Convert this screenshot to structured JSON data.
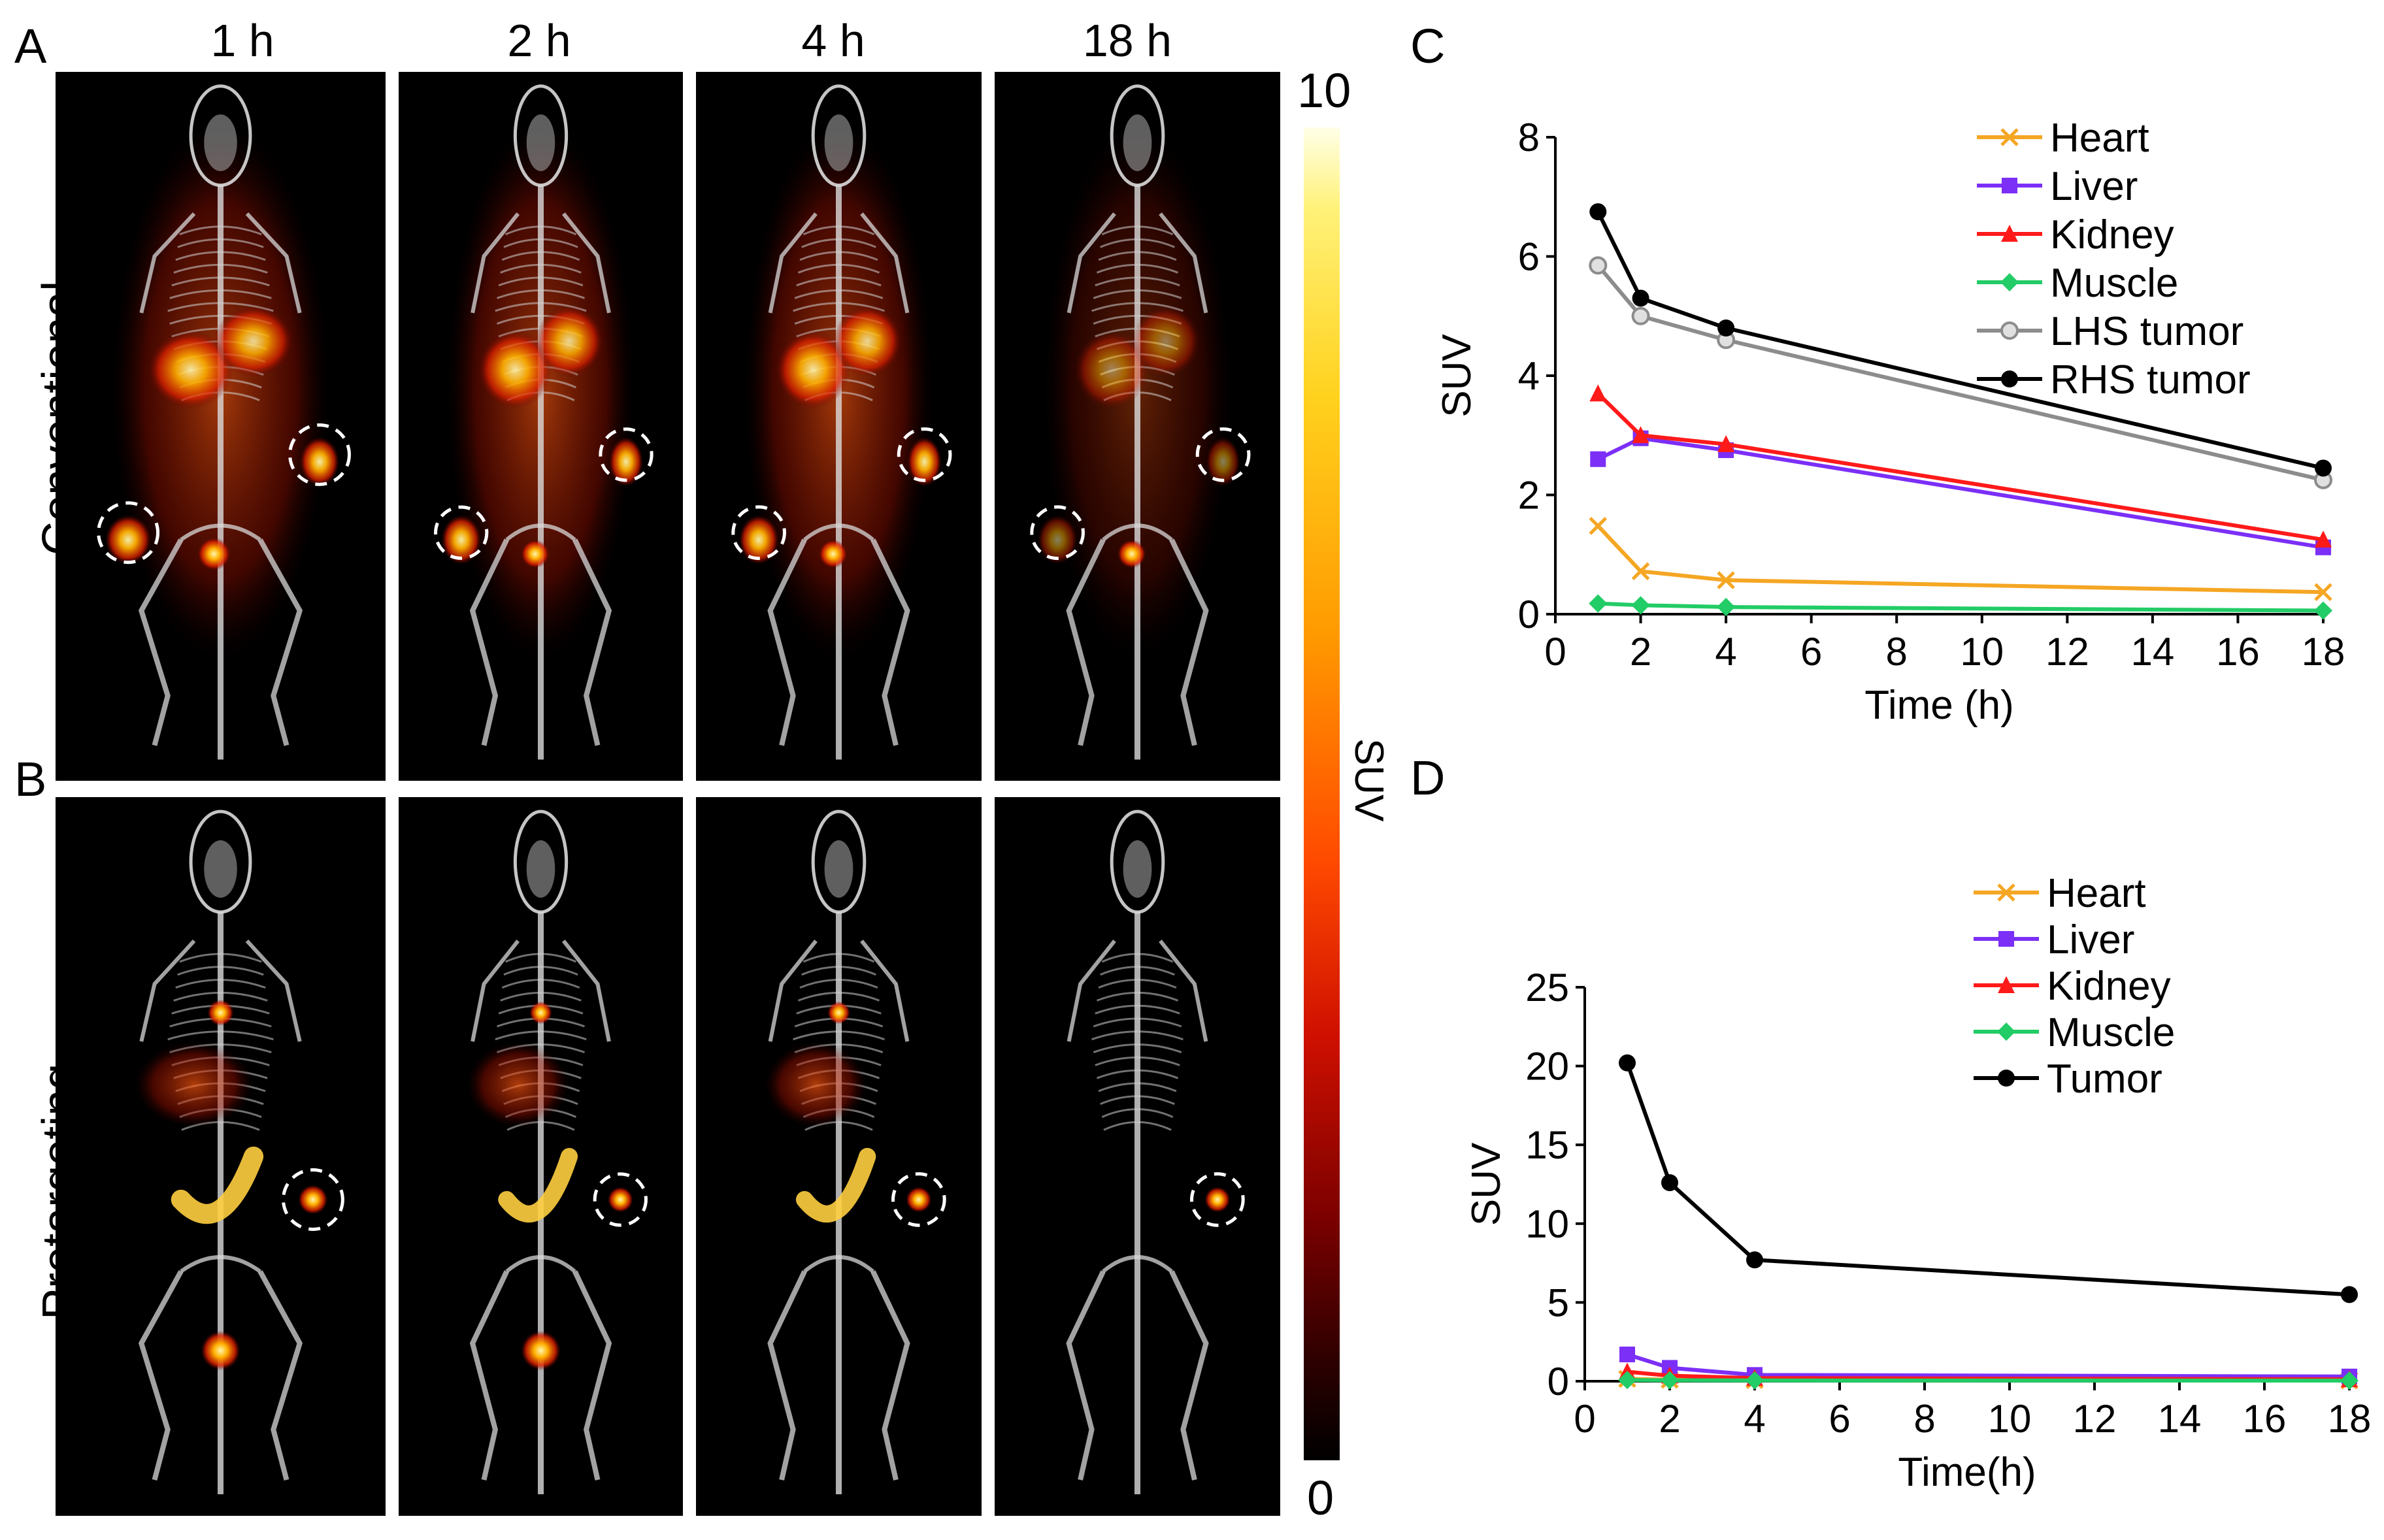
{
  "panels": {
    "a": "A",
    "b": "B",
    "c": "C",
    "d": "D"
  },
  "time_labels": [
    "1 h",
    "2 h",
    "4 h",
    "18 h"
  ],
  "row_labels": {
    "top": "Conventional",
    "bottom": "Pretargeting"
  },
  "colorbar": {
    "max": "10",
    "min": "0",
    "label": "SUV"
  },
  "chart_data": [
    {
      "type": "line",
      "panel": "C",
      "xlabel": "Time (h)",
      "ylabel": "SUV",
      "xlim": [
        0,
        18
      ],
      "ylim": [
        0,
        8
      ],
      "xticks": [
        0,
        2,
        4,
        6,
        8,
        10,
        12,
        14,
        16,
        18
      ],
      "yticks": [
        0,
        2,
        4,
        6,
        8
      ],
      "x": [
        1,
        2,
        4,
        18
      ],
      "legend_position": "top-right",
      "series": [
        {
          "name": "Heart",
          "values": [
            1.48,
            0.72,
            0.57,
            0.37
          ],
          "color": "#f5a623",
          "marker": "x"
        },
        {
          "name": "Liver",
          "values": [
            2.6,
            2.95,
            2.75,
            1.12
          ],
          "color": "#7b2ff7",
          "marker": "square"
        },
        {
          "name": "Kidney",
          "values": [
            3.7,
            3.0,
            2.85,
            1.25
          ],
          "color": "#ff1a1a",
          "marker": "triangle"
        },
        {
          "name": "Muscle",
          "values": [
            0.18,
            0.15,
            0.12,
            0.06
          ],
          "color": "#22cc66",
          "marker": "diamond"
        },
        {
          "name": "LHS tumor",
          "values": [
            5.85,
            5.0,
            4.6,
            2.25
          ],
          "color": "#8c8c8c",
          "marker": "circle-open"
        },
        {
          "name": "RHS tumor",
          "values": [
            6.75,
            5.3,
            4.8,
            2.45
          ],
          "color": "#000000",
          "marker": "circle"
        }
      ]
    },
    {
      "type": "line",
      "panel": "D",
      "xlabel": "Time(h)",
      "ylabel": "SUV",
      "xlim": [
        0,
        18
      ],
      "ylim": [
        0,
        25
      ],
      "xticks": [
        0,
        2,
        4,
        6,
        8,
        10,
        12,
        14,
        16,
        18
      ],
      "yticks": [
        0,
        5,
        10,
        15,
        20,
        25
      ],
      "x": [
        1,
        2,
        4,
        18
      ],
      "legend_position": "top-right",
      "series": [
        {
          "name": "Heart",
          "values": [
            0.15,
            0.1,
            0.08,
            0.05
          ],
          "color": "#f5a623",
          "marker": "x"
        },
        {
          "name": "Liver",
          "values": [
            1.7,
            0.85,
            0.4,
            0.3
          ],
          "color": "#7b2ff7",
          "marker": "square"
        },
        {
          "name": "Kidney",
          "values": [
            0.6,
            0.35,
            0.2,
            0.12
          ],
          "color": "#ff1a1a",
          "marker": "triangle"
        },
        {
          "name": "Muscle",
          "values": [
            0.08,
            0.06,
            0.05,
            0.04
          ],
          "color": "#22cc66",
          "marker": "diamond"
        },
        {
          "name": "Tumor",
          "values": [
            20.2,
            12.6,
            7.7,
            5.5
          ],
          "color": "#000000",
          "marker": "circle"
        }
      ]
    }
  ]
}
